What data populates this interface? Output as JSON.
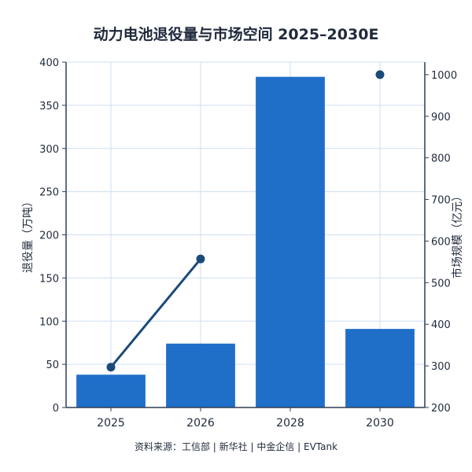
{
  "chart_data": {
    "type": "bar",
    "title": "动力电池退役量与市场空间 2025–2030E",
    "categories": [
      "2025",
      "2026",
      "2028",
      "2030"
    ],
    "ylabel_left": "退役量（万吨）",
    "ylabel_right": "市场规模（亿元）",
    "ylim_left": [
      0,
      400
    ],
    "yticks_left": [
      "0",
      "50",
      "100",
      "150",
      "200",
      "250",
      "300",
      "350",
      "400"
    ],
    "ylim_right": [
      200,
      1030
    ],
    "yticks_right": [
      "200",
      "300",
      "400",
      "500",
      "600",
      "700",
      "800",
      "900",
      "1000"
    ],
    "grid": true,
    "series": [
      {
        "kind": "bar",
        "axis": "left",
        "values": [
          38,
          74,
          383,
          91
        ]
      },
      {
        "kind": "line",
        "axis": "right",
        "points": [
          {
            "category": "2025",
            "value": 297
          },
          {
            "category": "2026",
            "value": 557
          },
          {
            "category": "2030",
            "value": 1000
          }
        ],
        "connected": [
          [
            "2025",
            "2026"
          ]
        ]
      }
    ],
    "source": "资料来源：工信部 | 新华社 | 中金企信 | EVTank"
  },
  "colors": {
    "bar": "#1f6fc8",
    "line": "#1b4a7a",
    "grid": "#cddff0",
    "axis": "#2f3e57",
    "text": "#1f2a3c"
  }
}
